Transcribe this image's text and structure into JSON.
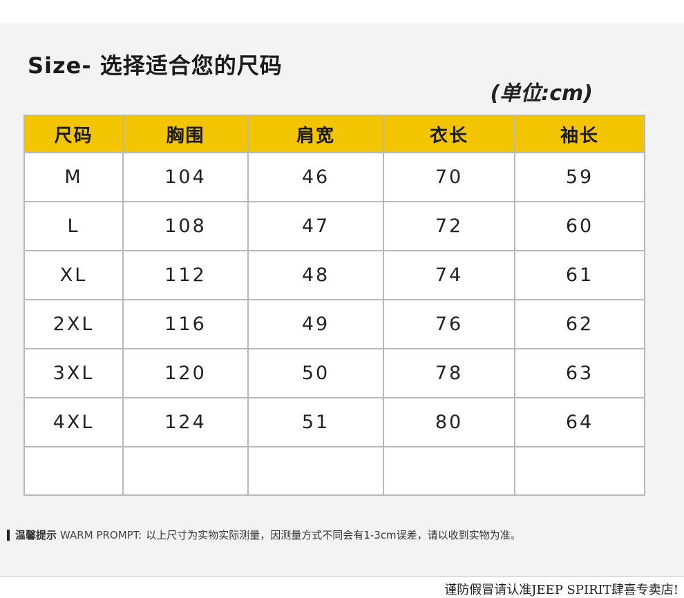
{
  "header": {
    "title": "Size- 选择适合您的尺码",
    "unit": "(单位:cm)"
  },
  "table": {
    "columns": [
      "尺码",
      "胸围",
      "肩宽",
      "衣长",
      "袖长"
    ],
    "rows": [
      [
        "M",
        "104",
        "46",
        "70",
        "59"
      ],
      [
        "L",
        "108",
        "47",
        "72",
        "60"
      ],
      [
        "XL",
        "112",
        "48",
        "74",
        "61"
      ],
      [
        "2XL",
        "116",
        "49",
        "76",
        "62"
      ],
      [
        "3XL",
        "120",
        "50",
        "78",
        "63"
      ],
      [
        "4XL",
        "124",
        "51",
        "80",
        "64"
      ]
    ],
    "header_color": "#f2c500"
  },
  "prompt": {
    "label": "温馨提示",
    "english": "WARM PROMPT:",
    "text": "以上尺寸为实物实际测量，因测量方式不同会有1-3cm误差，请以收到实物为准。"
  },
  "footer": {
    "text": "谨防假冒请认准JEEP SPIRIT肆喜专卖店!"
  }
}
